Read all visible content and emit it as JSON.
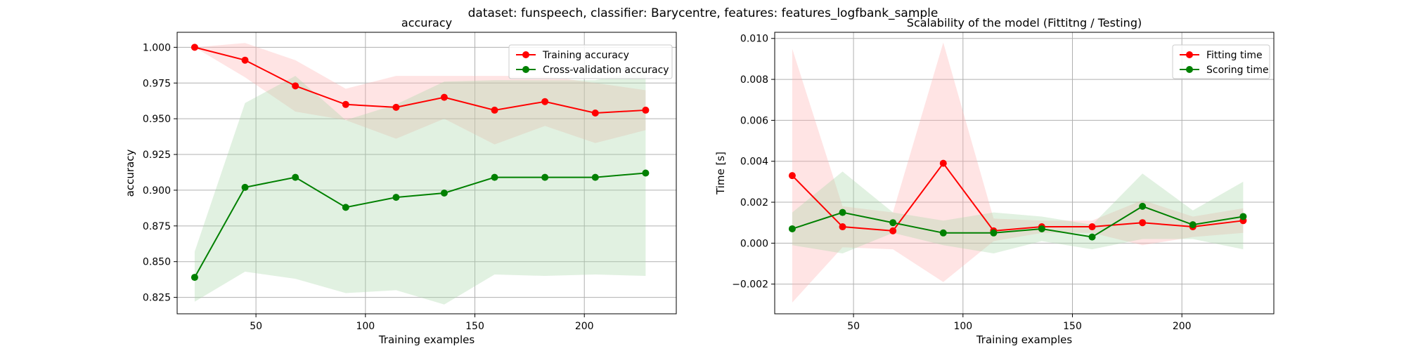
{
  "suptitle": "dataset: funspeech, classifier: Barycentre, features: features_logfbank_sample",
  "chart_data": [
    {
      "type": "line",
      "title": "accuracy",
      "xlabel": "Training examples",
      "ylabel": "accuracy",
      "xlim": [
        14,
        242
      ],
      "ylim": [
        0.8135,
        1.0105
      ],
      "xticks": [
        50,
        100,
        150,
        200
      ],
      "xtick_labels": [
        "50",
        "100",
        "150",
        "200"
      ],
      "yticks": [
        0.825,
        0.85,
        0.875,
        0.9,
        0.925,
        0.95,
        0.975,
        1.0
      ],
      "ytick_labels": [
        "0.825",
        "0.850",
        "0.875",
        "0.900",
        "0.925",
        "0.950",
        "0.975",
        "1.000"
      ],
      "grid": true,
      "legend": "top-right",
      "x": [
        22,
        45,
        68,
        91,
        114,
        136,
        159,
        182,
        205,
        228
      ],
      "series": [
        {
          "name": "Training accuracy",
          "color": "#ff0000",
          "fill": "#ffb3b3",
          "values": [
            1.0,
            0.991,
            0.973,
            0.96,
            0.958,
            0.965,
            0.956,
            0.962,
            0.954,
            0.956
          ],
          "upper": [
            1.0,
            1.003,
            0.991,
            0.971,
            0.98,
            0.98,
            0.98,
            0.98,
            0.975,
            0.97
          ],
          "lower": [
            1.0,
            0.979,
            0.955,
            0.949,
            0.936,
            0.95,
            0.932,
            0.945,
            0.933,
            0.942
          ]
        },
        {
          "name": "Cross-validation accuracy",
          "color": "#008000",
          "fill": "#a9d8a9",
          "values": [
            0.839,
            0.902,
            0.909,
            0.888,
            0.895,
            0.898,
            0.909,
            0.909,
            0.909,
            0.912
          ],
          "upper": [
            0.857,
            0.961,
            0.98,
            0.949,
            0.96,
            0.976,
            0.977,
            0.977,
            0.977,
            0.984
          ],
          "lower": [
            0.822,
            0.843,
            0.838,
            0.828,
            0.83,
            0.82,
            0.841,
            0.84,
            0.841,
            0.84
          ]
        }
      ]
    },
    {
      "type": "line",
      "title": "Scalability of the model (Fittitng / Testing)",
      "xlabel": "Training examples",
      "ylabel": "Time [s]",
      "xlim": [
        14,
        242
      ],
      "ylim": [
        -0.00345,
        0.0103
      ],
      "xticks": [
        50,
        100,
        150,
        200
      ],
      "xtick_labels": [
        "50",
        "100",
        "150",
        "200"
      ],
      "yticks": [
        -0.002,
        0.0,
        0.002,
        0.004,
        0.006,
        0.008,
        0.01
      ],
      "ytick_labels": [
        "−0.002",
        "0.000",
        "0.002",
        "0.004",
        "0.006",
        "0.008",
        "0.010"
      ],
      "grid": true,
      "legend": "top-right",
      "x": [
        22,
        45,
        68,
        91,
        114,
        136,
        159,
        182,
        205,
        228
      ],
      "series": [
        {
          "name": "Fitting time",
          "color": "#ff0000",
          "fill": "#ffb3b3",
          "values": [
            0.0033,
            0.0008,
            0.0006,
            0.0039,
            0.0006,
            0.0008,
            0.0008,
            0.001,
            0.0008,
            0.0011
          ],
          "upper": [
            0.0095,
            0.0018,
            0.0015,
            0.0098,
            0.0012,
            0.0011,
            0.0011,
            0.0021,
            0.0013,
            0.0017
          ],
          "lower": [
            -0.0029,
            -0.0002,
            -0.0003,
            -0.0019,
            0.0001,
            0.0005,
            0.0005,
            -0.0001,
            0.0003,
            0.0005
          ]
        },
        {
          "name": "Scoring time",
          "color": "#008000",
          "fill": "#a9d8a9",
          "values": [
            0.0007,
            0.0015,
            0.001,
            0.0005,
            0.0005,
            0.0007,
            0.0003,
            0.0018,
            0.0009,
            0.0013
          ],
          "upper": [
            0.0015,
            0.0035,
            0.0015,
            0.0011,
            0.0015,
            0.0013,
            0.0009,
            0.0034,
            0.0016,
            0.003
          ],
          "lower": [
            -0.0001,
            -0.0005,
            0.0005,
            -0.0001,
            -0.0005,
            0.0001,
            -0.0003,
            0.0002,
            0.0002,
            -0.0003
          ]
        }
      ]
    }
  ]
}
